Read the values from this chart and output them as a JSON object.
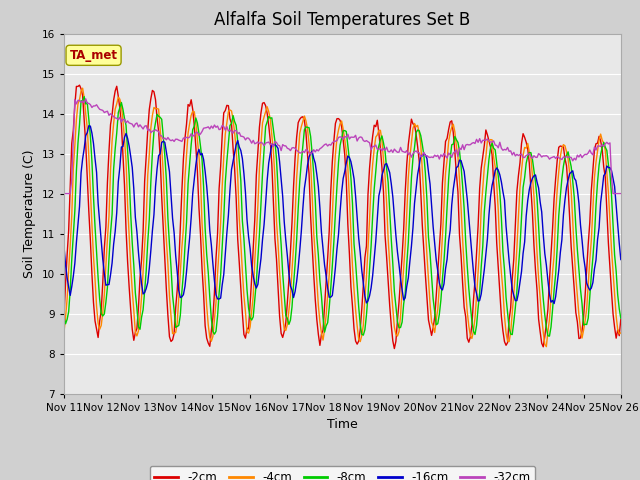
{
  "title": "Alfalfa Soil Temperatures Set B",
  "xlabel": "Time",
  "ylabel": "Soil Temperature (C)",
  "ylim": [
    7.0,
    16.0
  ],
  "yticks": [
    7.0,
    8.0,
    9.0,
    10.0,
    11.0,
    12.0,
    13.0,
    14.0,
    15.0,
    16.0
  ],
  "xtick_labels": [
    "Nov 11",
    "Nov 12",
    "Nov 13",
    "Nov 14",
    "Nov 15",
    "Nov 16",
    "Nov 17",
    "Nov 18",
    "Nov 19",
    "Nov 20",
    "Nov 21",
    "Nov 22",
    "Nov 23",
    "Nov 24",
    "Nov 25",
    "Nov 26"
  ],
  "background_color": "#e0e0e0",
  "plot_bg_color": "#e8e8e8",
  "fig_bg_color": "#d0d0d0",
  "legend_entries": [
    "-2cm",
    "-4cm",
    "-8cm",
    "-16cm",
    "-32cm"
  ],
  "line_colors": [
    "#dd0000",
    "#ff8800",
    "#00cc00",
    "#0000cc",
    "#bb44bb"
  ],
  "ta_met_box_color": "#ffff99",
  "ta_met_text_color": "#aa0000",
  "title_fontsize": 12,
  "n_points": 360
}
